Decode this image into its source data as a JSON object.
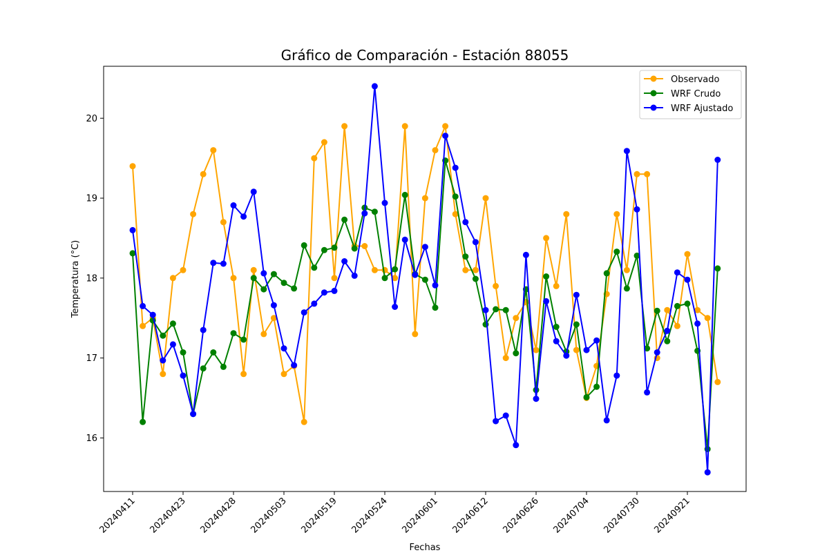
{
  "chart_data": {
    "type": "line",
    "title": "Gráfico de Comparación - Estación 88055",
    "xlabel": "Fechas",
    "ylabel": "Temperatura (°C)",
    "ylim": [
      15.33,
      20.65
    ],
    "yticks": [
      16,
      17,
      18,
      19,
      20
    ],
    "xtick_labels": [
      "20240411",
      "20240423",
      "20240428",
      "20240503",
      "20240519",
      "20240524",
      "20240601",
      "20240612",
      "20240626",
      "20240704",
      "20240730",
      "20240921"
    ],
    "legend": "top-right",
    "grid": false,
    "series": [
      {
        "name": "Observado",
        "color": "#FFA500",
        "values": [
          19.4,
          17.4,
          17.5,
          16.8,
          18.0,
          18.1,
          18.8,
          19.3,
          19.6,
          18.7,
          18.0,
          16.8,
          18.1,
          17.3,
          17.5,
          16.8,
          16.9,
          16.2,
          19.5,
          19.7,
          18.0,
          19.9,
          18.4,
          18.4,
          18.1,
          18.1,
          18.0,
          19.9,
          17.3,
          19.0,
          19.6,
          19.9,
          18.8,
          18.1,
          18.1,
          19.0,
          17.9,
          17.0,
          17.5,
          17.7,
          17.1,
          18.5,
          17.9,
          18.8,
          17.1,
          16.5,
          16.9,
          17.8,
          18.8,
          18.1,
          19.3,
          19.3,
          17.0,
          17.6,
          17.4,
          18.3,
          17.6,
          17.5,
          16.7
        ]
      },
      {
        "name": "WRF Crudo",
        "color": "#008000",
        "values": [
          18.31,
          16.2,
          17.47,
          17.28,
          17.43,
          17.07,
          16.3,
          16.87,
          17.07,
          16.89,
          17.31,
          17.23,
          18.0,
          17.86,
          18.05,
          17.94,
          17.87,
          18.41,
          18.13,
          18.35,
          18.38,
          18.73,
          18.37,
          18.88,
          18.83,
          18.0,
          18.11,
          19.04,
          18.05,
          17.98,
          17.63,
          19.47,
          19.02,
          18.27,
          17.99,
          17.42,
          17.61,
          17.6,
          17.06,
          17.86,
          16.6,
          18.02,
          17.39,
          17.08,
          17.42,
          16.51,
          16.64,
          18.06,
          18.33,
          17.87,
          18.28,
          17.12,
          17.59,
          17.21,
          17.65,
          17.68,
          17.09,
          15.86,
          18.12
        ]
      },
      {
        "name": "WRF Ajustado",
        "color": "#0000FF",
        "values": [
          18.6,
          17.65,
          17.54,
          16.97,
          17.17,
          16.78,
          16.3,
          17.35,
          18.19,
          18.18,
          18.91,
          18.77,
          19.08,
          18.06,
          17.66,
          17.12,
          16.91,
          17.57,
          17.68,
          17.82,
          17.84,
          18.21,
          18.03,
          18.81,
          20.4,
          18.94,
          17.64,
          18.48,
          18.04,
          18.39,
          17.91,
          19.78,
          19.38,
          18.7,
          18.45,
          17.6,
          16.21,
          16.28,
          15.91,
          18.29,
          16.49,
          17.71,
          17.21,
          17.03,
          17.79,
          17.1,
          17.22,
          16.22,
          16.78,
          19.59,
          18.86,
          16.57,
          17.07,
          17.34,
          18.07,
          17.98,
          17.43,
          15.57,
          19.48
        ]
      }
    ]
  }
}
